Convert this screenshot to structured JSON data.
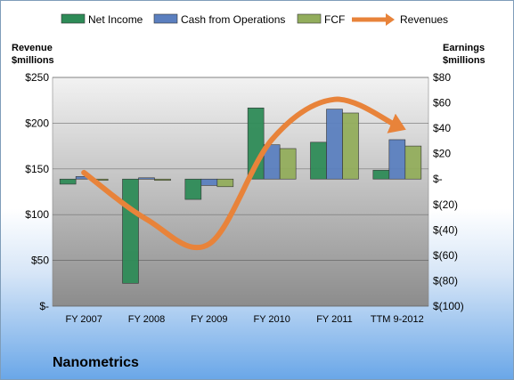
{
  "chart_data": {
    "type": "bar",
    "title": "Nanometrics",
    "categories": [
      "FY 2007",
      "FY 2008",
      "FY 2009",
      "FY 2010",
      "FY 2011",
      "TTM 9-2012"
    ],
    "series": [
      {
        "name": "Net Income",
        "axis": "right",
        "color": "#2e8b57",
        "values": [
          -4,
          -82,
          -16,
          56,
          29,
          7
        ]
      },
      {
        "name": "Cash from Operations",
        "axis": "right",
        "color": "#5b7fbf",
        "values": [
          2,
          1,
          -5,
          27,
          55,
          31
        ]
      },
      {
        "name": "FCF",
        "axis": "right",
        "color": "#92ad5c",
        "values": [
          0,
          -1,
          -6,
          24,
          52,
          26
        ]
      },
      {
        "name": "Revenues",
        "axis": "left",
        "type": "line",
        "color": "#e8833a",
        "values": [
          146,
          95,
          68,
          182,
          226,
          197
        ]
      }
    ],
    "left_axis": {
      "label": "Revenue\n$millions",
      "label_lines": [
        "Revenue",
        "$millions"
      ],
      "ticks": [
        "$250",
        "$200",
        "$150",
        "$100",
        "$50",
        "$-"
      ],
      "ylim": [
        0,
        250
      ]
    },
    "right_axis": {
      "label": "Earnings\n$millions",
      "label_lines": [
        "Earnings",
        "$millions"
      ],
      "ticks": [
        "$80",
        "$60",
        "$40",
        "$20",
        "$-",
        "$(20)",
        "$(40)",
        "$(60)",
        "$(80)",
        "$(100)"
      ],
      "ylim": [
        -100,
        80
      ]
    },
    "legend": "top",
    "grid": true
  }
}
